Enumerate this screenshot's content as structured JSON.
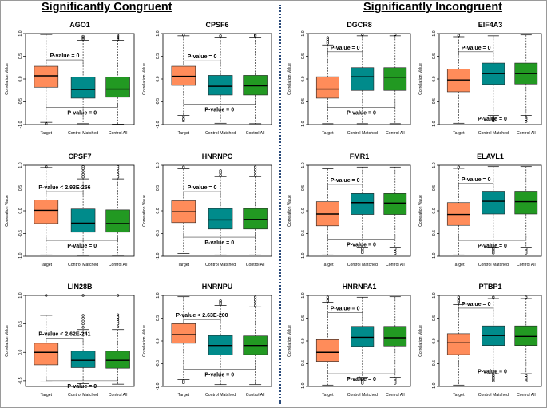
{
  "headers": {
    "left": "Significantly Congruent",
    "right": "Significantly Incongruent"
  },
  "colors": {
    "target": "#ff8c5a",
    "matched": "#008b8b",
    "all": "#229922",
    "divider": "#2a4a7a"
  },
  "chart_data": [
    {
      "type": "box",
      "title": "AGO1",
      "ylabel": "Correlation Value",
      "categories": [
        "Target",
        "Control Matched",
        "Control All"
      ],
      "ylim": [
        -1,
        1
      ],
      "yticks": [
        -1,
        -0.5,
        0,
        0.5,
        1
      ],
      "tick_labels": [
        "-1.0",
        "-0.5",
        "0.0",
        "0.5",
        "1.0"
      ],
      "boxes": [
        {
          "whisker_low": -0.95,
          "q1": -0.18,
          "median": 0.07,
          "q3": 0.28,
          "whisker_high": 0.98,
          "outliers_low": [
            -0.98
          ],
          "outliers_high": []
        },
        {
          "whisker_low": -0.98,
          "q1": -0.42,
          "median": -0.23,
          "q3": 0.04,
          "whisker_high": 0.85,
          "outliers_low": [],
          "outliers_high": [
            0.88,
            0.91,
            0.94
          ]
        },
        {
          "whisker_low": -0.99,
          "q1": -0.4,
          "median": -0.22,
          "q3": 0.04,
          "whisker_high": 0.85,
          "outliers_low": [],
          "outliers_high": [
            0.87,
            0.9,
            0.93,
            0.96
          ]
        }
      ],
      "annotations": [
        {
          "text": "P-value = 0",
          "pair": [
            0,
            1
          ],
          "y": 0.42
        },
        {
          "text": "P-value = 0",
          "pair": [
            0,
            2
          ],
          "y": -0.62
        }
      ]
    },
    {
      "type": "box",
      "title": "CPSF6",
      "ylabel": "Correlation Value",
      "categories": [
        "Target",
        "Control Matched",
        "Control All"
      ],
      "ylim": [
        -1,
        1
      ],
      "yticks": [
        -1,
        -0.5,
        0,
        0.5,
        1
      ],
      "tick_labels": [
        "-1.0",
        "-0.5",
        "0.0",
        "0.5",
        "1.0"
      ],
      "boxes": [
        {
          "whisker_low": -0.8,
          "q1": -0.14,
          "median": 0.06,
          "q3": 0.28,
          "whisker_high": 0.95,
          "outliers_low": [
            -0.83,
            -0.88,
            -0.92
          ],
          "outliers_high": [
            0.97
          ]
        },
        {
          "whisker_low": -0.97,
          "q1": -0.35,
          "median": -0.16,
          "q3": 0.08,
          "whisker_high": 0.92,
          "outliers_low": [],
          "outliers_high": [
            0.95
          ]
        },
        {
          "whisker_low": -0.98,
          "q1": -0.35,
          "median": -0.15,
          "q3": 0.08,
          "whisker_high": 0.92,
          "outliers_low": [],
          "outliers_high": [
            0.95,
            0.97
          ]
        }
      ],
      "annotations": [
        {
          "text": "P-value = 0",
          "pair": [
            0,
            1
          ],
          "y": 0.4
        },
        {
          "text": "P-value = 0",
          "pair": [
            0,
            2
          ],
          "y": -0.55
        }
      ]
    },
    {
      "type": "box",
      "title": "CPSF7",
      "ylabel": "Correlation Value",
      "categories": [
        "Target",
        "Control Matched",
        "Control All"
      ],
      "ylim": [
        -1,
        1
      ],
      "yticks": [
        -1,
        -0.5,
        0,
        0.5,
        1
      ],
      "tick_labels": [
        "-1.0",
        "-0.5",
        "0.0",
        "0.5",
        "1.0"
      ],
      "boxes": [
        {
          "whisker_low": -0.97,
          "q1": -0.28,
          "median": 0.01,
          "q3": 0.24,
          "whisker_high": 0.95,
          "outliers_low": [],
          "outliers_high": [
            0.97
          ]
        },
        {
          "whisker_low": -0.98,
          "q1": -0.47,
          "median": -0.27,
          "q3": 0.04,
          "whisker_high": 0.7,
          "outliers_low": [],
          "outliers_high": [
            0.74,
            0.8,
            0.86,
            0.92,
            0.97
          ]
        },
        {
          "whisker_low": -0.98,
          "q1": -0.47,
          "median": -0.28,
          "q3": 0.02,
          "whisker_high": 0.7,
          "outliers_low": [],
          "outliers_high": [
            0.74,
            0.8,
            0.86,
            0.92,
            0.97
          ]
        }
      ],
      "annotations": [
        {
          "text": "P-value < 2.93E-256",
          "pair": [
            0,
            1
          ],
          "y": 0.42
        },
        {
          "text": "P-value = 0",
          "pair": [
            0,
            2
          ],
          "y": -0.65
        }
      ]
    },
    {
      "type": "box",
      "title": "HNRNPC",
      "ylabel": "Correlation Value",
      "categories": [
        "Target",
        "Control Matched",
        "Control All"
      ],
      "ylim": [
        -1,
        1
      ],
      "yticks": [
        -1,
        -0.5,
        0,
        0.5,
        1
      ],
      "tick_labels": [
        "-1.0",
        "-0.5",
        "0.0",
        "0.5",
        "1.0"
      ],
      "boxes": [
        {
          "whisker_low": -0.94,
          "q1": -0.26,
          "median": -0.02,
          "q3": 0.22,
          "whisker_high": 0.92,
          "outliers_low": [],
          "outliers_high": [
            0.96
          ]
        },
        {
          "whisker_low": -0.97,
          "q1": -0.4,
          "median": -0.2,
          "q3": 0.05,
          "whisker_high": 0.75,
          "outliers_low": [],
          "outliers_high": [
            0.78,
            0.83,
            0.88
          ]
        },
        {
          "whisker_low": -0.97,
          "q1": -0.4,
          "median": -0.19,
          "q3": 0.05,
          "whisker_high": 0.75,
          "outliers_low": [],
          "outliers_high": [
            0.78,
            0.84,
            0.9,
            0.96
          ]
        }
      ],
      "annotations": [
        {
          "text": "P-value = 0",
          "pair": [
            0,
            1
          ],
          "y": 0.42
        },
        {
          "text": "P-value = 0",
          "pair": [
            0,
            2
          ],
          "y": -0.58
        }
      ]
    },
    {
      "type": "box",
      "title": "LIN28B",
      "ylabel": "Correlation Value",
      "categories": [
        "Target",
        "Control Matched",
        "Control All"
      ],
      "ylim": [
        -0.6,
        1
      ],
      "yticks": [
        -0.5,
        0,
        0.5,
        1
      ],
      "tick_labels": [
        "-0.5",
        "0.0",
        "0.5",
        "1.0"
      ],
      "boxes": [
        {
          "whisker_low": -0.52,
          "q1": -0.22,
          "median": 0.0,
          "q3": 0.16,
          "whisker_high": 0.65,
          "outliers_low": [],
          "outliers_high": [
            1.0
          ]
        },
        {
          "whisker_low": -0.55,
          "q1": -0.27,
          "median": -0.14,
          "q3": 0.02,
          "whisker_high": 0.4,
          "outliers_low": [],
          "outliers_high": [
            0.44,
            0.5,
            0.55,
            0.6,
            0.65,
            1.0
          ]
        },
        {
          "whisker_low": -0.56,
          "q1": -0.28,
          "median": -0.14,
          "q3": 0.02,
          "whisker_high": 0.4,
          "outliers_low": [],
          "outliers_high": [
            0.45,
            0.5,
            0.54,
            0.58,
            0.62,
            0.66,
            1.0
          ]
        }
      ],
      "annotations": [
        {
          "text": "P-value < 2.62E-241",
          "pair": [
            0,
            1
          ],
          "y": 0.25
        },
        {
          "text": "P-value = 0",
          "pair": [
            0,
            2
          ],
          "y": -0.5
        }
      ]
    },
    {
      "type": "box",
      "title": "HNRNPU",
      "ylabel": "Correlation Value",
      "categories": [
        "Target",
        "Control Matched",
        "Control All"
      ],
      "ylim": [
        -1,
        1
      ],
      "yticks": [
        -1,
        -0.5,
        0,
        0.5,
        1
      ],
      "tick_labels": [
        "-1.0",
        "-0.5",
        "0.0",
        "0.5",
        "1.0"
      ],
      "boxes": [
        {
          "whisker_low": -0.85,
          "q1": -0.05,
          "median": 0.14,
          "q3": 0.38,
          "whisker_high": 0.97,
          "outliers_low": [
            -0.88,
            -0.92
          ],
          "outliers_high": []
        },
        {
          "whisker_low": -0.96,
          "q1": -0.31,
          "median": -0.1,
          "q3": 0.12,
          "whisker_high": 0.78,
          "outliers_low": [],
          "outliers_high": [
            0.81,
            0.85,
            0.88
          ]
        },
        {
          "whisker_low": -0.96,
          "q1": -0.3,
          "median": -0.1,
          "q3": 0.11,
          "whisker_high": 0.75,
          "outliers_low": [],
          "outliers_high": [
            0.78,
            0.84,
            0.9,
            0.96
          ]
        }
      ],
      "annotations": [
        {
          "text": "P-value < 2.63E-200",
          "pair": [
            0,
            1
          ],
          "y": 0.47
        },
        {
          "text": "P-value = 0",
          "pair": [
            0,
            2
          ],
          "y": -0.62
        }
      ]
    },
    {
      "type": "box",
      "title": "DGCR8",
      "ylabel": "Correlation Value",
      "categories": [
        "Target",
        "Control Matched",
        "Control All"
      ],
      "ylim": [
        -1,
        1
      ],
      "yticks": [
        -1,
        -0.5,
        0,
        0.5,
        1
      ],
      "tick_labels": [
        "-1.0",
        "-0.5",
        "0.0",
        "0.5",
        "1.0"
      ],
      "boxes": [
        {
          "whisker_low": -0.98,
          "q1": -0.42,
          "median": -0.22,
          "q3": 0.05,
          "whisker_high": 0.75,
          "outliers_low": [],
          "outliers_high": [
            0.79,
            0.83,
            0.87,
            0.91
          ]
        },
        {
          "whisker_low": -0.98,
          "q1": -0.25,
          "median": 0.05,
          "q3": 0.25,
          "whisker_high": 0.95,
          "outliers_low": [],
          "outliers_high": [
            0.98
          ]
        },
        {
          "whisker_low": -0.98,
          "q1": -0.25,
          "median": 0.04,
          "q3": 0.25,
          "whisker_high": 0.95,
          "outliers_low": [],
          "outliers_high": [
            0.98
          ]
        }
      ],
      "annotations": [
        {
          "text": "P-value = 0",
          "pair": [
            0,
            1
          ],
          "y": 0.6
        },
        {
          "text": "P-value = 0",
          "pair": [
            0,
            2
          ],
          "y": -0.62
        }
      ]
    },
    {
      "type": "box",
      "title": "EIF4A3",
      "ylabel": "Correlation Value",
      "categories": [
        "Target",
        "Control Matched",
        "Control All"
      ],
      "ylim": [
        -1,
        1
      ],
      "yticks": [
        -1,
        -0.5,
        0,
        0.5,
        1
      ],
      "tick_labels": [
        "-1.0",
        "-0.5",
        "0.0",
        "0.5",
        "1.0"
      ],
      "boxes": [
        {
          "whisker_low": -0.97,
          "q1": -0.28,
          "median": -0.02,
          "q3": 0.22,
          "whisker_high": 0.93,
          "outliers_low": [],
          "outliers_high": [
            0.96
          ]
        },
        {
          "whisker_low": -0.8,
          "q1": -0.12,
          "median": 0.12,
          "q3": 0.35,
          "whisker_high": 0.95,
          "outliers_low": [
            -0.84,
            -0.88,
            -0.92
          ],
          "outliers_high": []
        },
        {
          "whisker_low": -0.8,
          "q1": -0.11,
          "median": 0.12,
          "q3": 0.35,
          "whisker_high": 0.97,
          "outliers_low": [
            -0.84,
            -0.88,
            -0.93
          ],
          "outliers_high": []
        }
      ],
      "annotations": [
        {
          "text": "P-value = 0",
          "pair": [
            0,
            1
          ],
          "y": 0.6
        },
        {
          "text": "P-value = 0",
          "pair": [
            0,
            2
          ],
          "y": -0.75
        }
      ]
    },
    {
      "type": "box",
      "title": "FMR1",
      "ylabel": "Correlation Value",
      "categories": [
        "Target",
        "Control Matched",
        "Control All"
      ],
      "ylim": [
        -1,
        1
      ],
      "yticks": [
        -1,
        -0.5,
        0,
        0.5,
        1
      ],
      "tick_labels": [
        "-1.0",
        "-0.5",
        "0.0",
        "0.5",
        "1.0"
      ],
      "boxes": [
        {
          "whisker_low": -0.97,
          "q1": -0.33,
          "median": -0.07,
          "q3": 0.2,
          "whisker_high": 0.92,
          "outliers_low": [],
          "outliers_high": []
        },
        {
          "whisker_low": -0.8,
          "q1": -0.08,
          "median": 0.18,
          "q3": 0.38,
          "whisker_high": 0.96,
          "outliers_low": [
            -0.84,
            -0.88,
            -0.92
          ],
          "outliers_high": []
        },
        {
          "whisker_low": -0.8,
          "q1": -0.08,
          "median": 0.17,
          "q3": 0.38,
          "whisker_high": 0.96,
          "outliers_low": [
            -0.84,
            -0.89,
            -0.94
          ],
          "outliers_high": []
        }
      ],
      "annotations": [
        {
          "text": "P-value = 0",
          "pair": [
            0,
            1
          ],
          "y": 0.58
        },
        {
          "text": "P-value = 0",
          "pair": [
            0,
            2
          ],
          "y": -0.62
        }
      ]
    },
    {
      "type": "box",
      "title": "ELAVL1",
      "ylabel": "Correlation Value",
      "categories": [
        "Target",
        "Control Matched",
        "Control All"
      ],
      "ylim": [
        -1,
        1
      ],
      "yticks": [
        -1,
        -0.5,
        0,
        0.5,
        1
      ],
      "tick_labels": [
        "-1.0",
        "-0.5",
        "0.0",
        "0.5",
        "1.0"
      ],
      "boxes": [
        {
          "whisker_low": -0.97,
          "q1": -0.32,
          "median": -0.08,
          "q3": 0.18,
          "whisker_high": 0.93,
          "outliers_low": [],
          "outliers_high": [
            0.96
          ]
        },
        {
          "whisker_low": -0.8,
          "q1": -0.07,
          "median": 0.21,
          "q3": 0.43,
          "whisker_high": 0.97,
          "outliers_low": [
            -0.84,
            -0.88,
            -0.93
          ],
          "outliers_high": []
        },
        {
          "whisker_low": -0.8,
          "q1": -0.07,
          "median": 0.2,
          "q3": 0.43,
          "whisker_high": 0.97,
          "outliers_low": [
            -0.84,
            -0.88,
            -0.93
          ],
          "outliers_high": []
        }
      ],
      "annotations": [
        {
          "text": "P-value = 0",
          "pair": [
            0,
            1
          ],
          "y": 0.6
        },
        {
          "text": "P-value = 0",
          "pair": [
            0,
            2
          ],
          "y": -0.65
        }
      ]
    },
    {
      "type": "box",
      "title": "HNRNPA1",
      "ylabel": "Correlation Value",
      "categories": [
        "Target",
        "Control Matched",
        "Control All"
      ],
      "ylim": [
        -1,
        1
      ],
      "yticks": [
        -1,
        -0.5,
        0,
        0.5,
        1
      ],
      "tick_labels": [
        "-1.0",
        "-0.5",
        "0.0",
        "0.5",
        "1.0"
      ],
      "boxes": [
        {
          "whisker_low": -0.97,
          "q1": -0.45,
          "median": -0.25,
          "q3": 0.03,
          "whisker_high": 0.85,
          "outliers_low": [],
          "outliers_high": [
            0.88,
            0.92,
            0.96
          ]
        },
        {
          "whisker_low": -0.8,
          "q1": -0.12,
          "median": 0.08,
          "q3": 0.32,
          "whisker_high": 0.96,
          "outliers_low": [
            -0.84,
            -0.88,
            -0.93
          ],
          "outliers_high": []
        },
        {
          "whisker_low": -0.8,
          "q1": -0.11,
          "median": 0.07,
          "q3": 0.32,
          "whisker_high": 0.97,
          "outliers_low": [
            -0.84,
            -0.88,
            -0.93
          ],
          "outliers_high": []
        }
      ],
      "annotations": [
        {
          "text": "P-value = 0",
          "pair": [
            0,
            1
          ],
          "y": 0.62
        },
        {
          "text": "P-value = 0",
          "pair": [
            0,
            2
          ],
          "y": -0.72
        }
      ]
    },
    {
      "type": "box",
      "title": "PTBP1",
      "ylabel": "Correlation Value",
      "categories": [
        "Target",
        "Control Matched",
        "Control All"
      ],
      "ylim": [
        -1,
        1
      ],
      "yticks": [
        -1,
        -0.5,
        0,
        0.5,
        1
      ],
      "tick_labels": [
        "-1.0",
        "-0.5",
        "0.0",
        "0.5",
        "1.0"
      ],
      "boxes": [
        {
          "whisker_low": -0.97,
          "q1": -0.3,
          "median": -0.04,
          "q3": 0.16,
          "whisker_high": 0.8,
          "outliers_low": [],
          "outliers_high": [
            0.84,
            0.88,
            0.92,
            0.96
          ]
        },
        {
          "whisker_low": -0.72,
          "q1": -0.1,
          "median": 0.12,
          "q3": 0.33,
          "whisker_high": 0.93,
          "outliers_low": [
            -0.76,
            -0.8,
            -0.84,
            -0.88
          ],
          "outliers_high": [
            0.96
          ]
        },
        {
          "whisker_low": -0.72,
          "q1": -0.1,
          "median": 0.1,
          "q3": 0.33,
          "whisker_high": 0.93,
          "outliers_low": [
            -0.76,
            -0.8,
            -0.84,
            -0.88
          ],
          "outliers_high": [
            0.96
          ]
        }
      ],
      "annotations": [
        {
          "text": "P-value = 0",
          "pair": [
            0,
            1
          ],
          "y": 0.72
        },
        {
          "text": "P-value = 0",
          "pair": [
            0,
            2
          ],
          "y": -0.55
        }
      ]
    }
  ]
}
